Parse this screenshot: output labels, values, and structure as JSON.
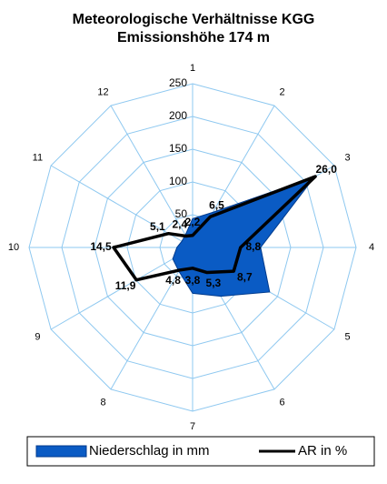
{
  "chart_data": {
    "type": "radar",
    "title": "Meteorologische Verhältnisse KGG",
    "subtitle": "Emissionshöhe 174 m",
    "categories": [
      "1",
      "2",
      "3",
      "4",
      "5",
      "6",
      "7",
      "8",
      "9",
      "10",
      "11",
      "12"
    ],
    "ylim": [
      0,
      250
    ],
    "yticks": [
      0,
      50,
      100,
      150,
      200,
      250
    ],
    "y2lim": [
      0,
      30
    ],
    "grid": true,
    "legend": "bottom",
    "series": [
      {
        "name": "Niederschlag in mm",
        "type": "area",
        "color": "#0a5bc4",
        "values": [
          44,
          62,
          215,
          104,
          136,
          86,
          70,
          42,
          35,
          24,
          19,
          22
        ]
      },
      {
        "name": "AR in %",
        "type": "line",
        "color": "#000000",
        "axis": "y2",
        "values": [
          2.2,
          6.5,
          26.0,
          8.8,
          8.7,
          5.3,
          3.8,
          4.8,
          11.9,
          14.5,
          5.1,
          2.4
        ],
        "value_labels": [
          "2,2",
          "6,5",
          "26,0",
          "8,8",
          "8,7",
          "5,3",
          "3,8",
          "4,8",
          "11,9",
          "14,5",
          "5,1",
          "2,4"
        ]
      }
    ]
  }
}
